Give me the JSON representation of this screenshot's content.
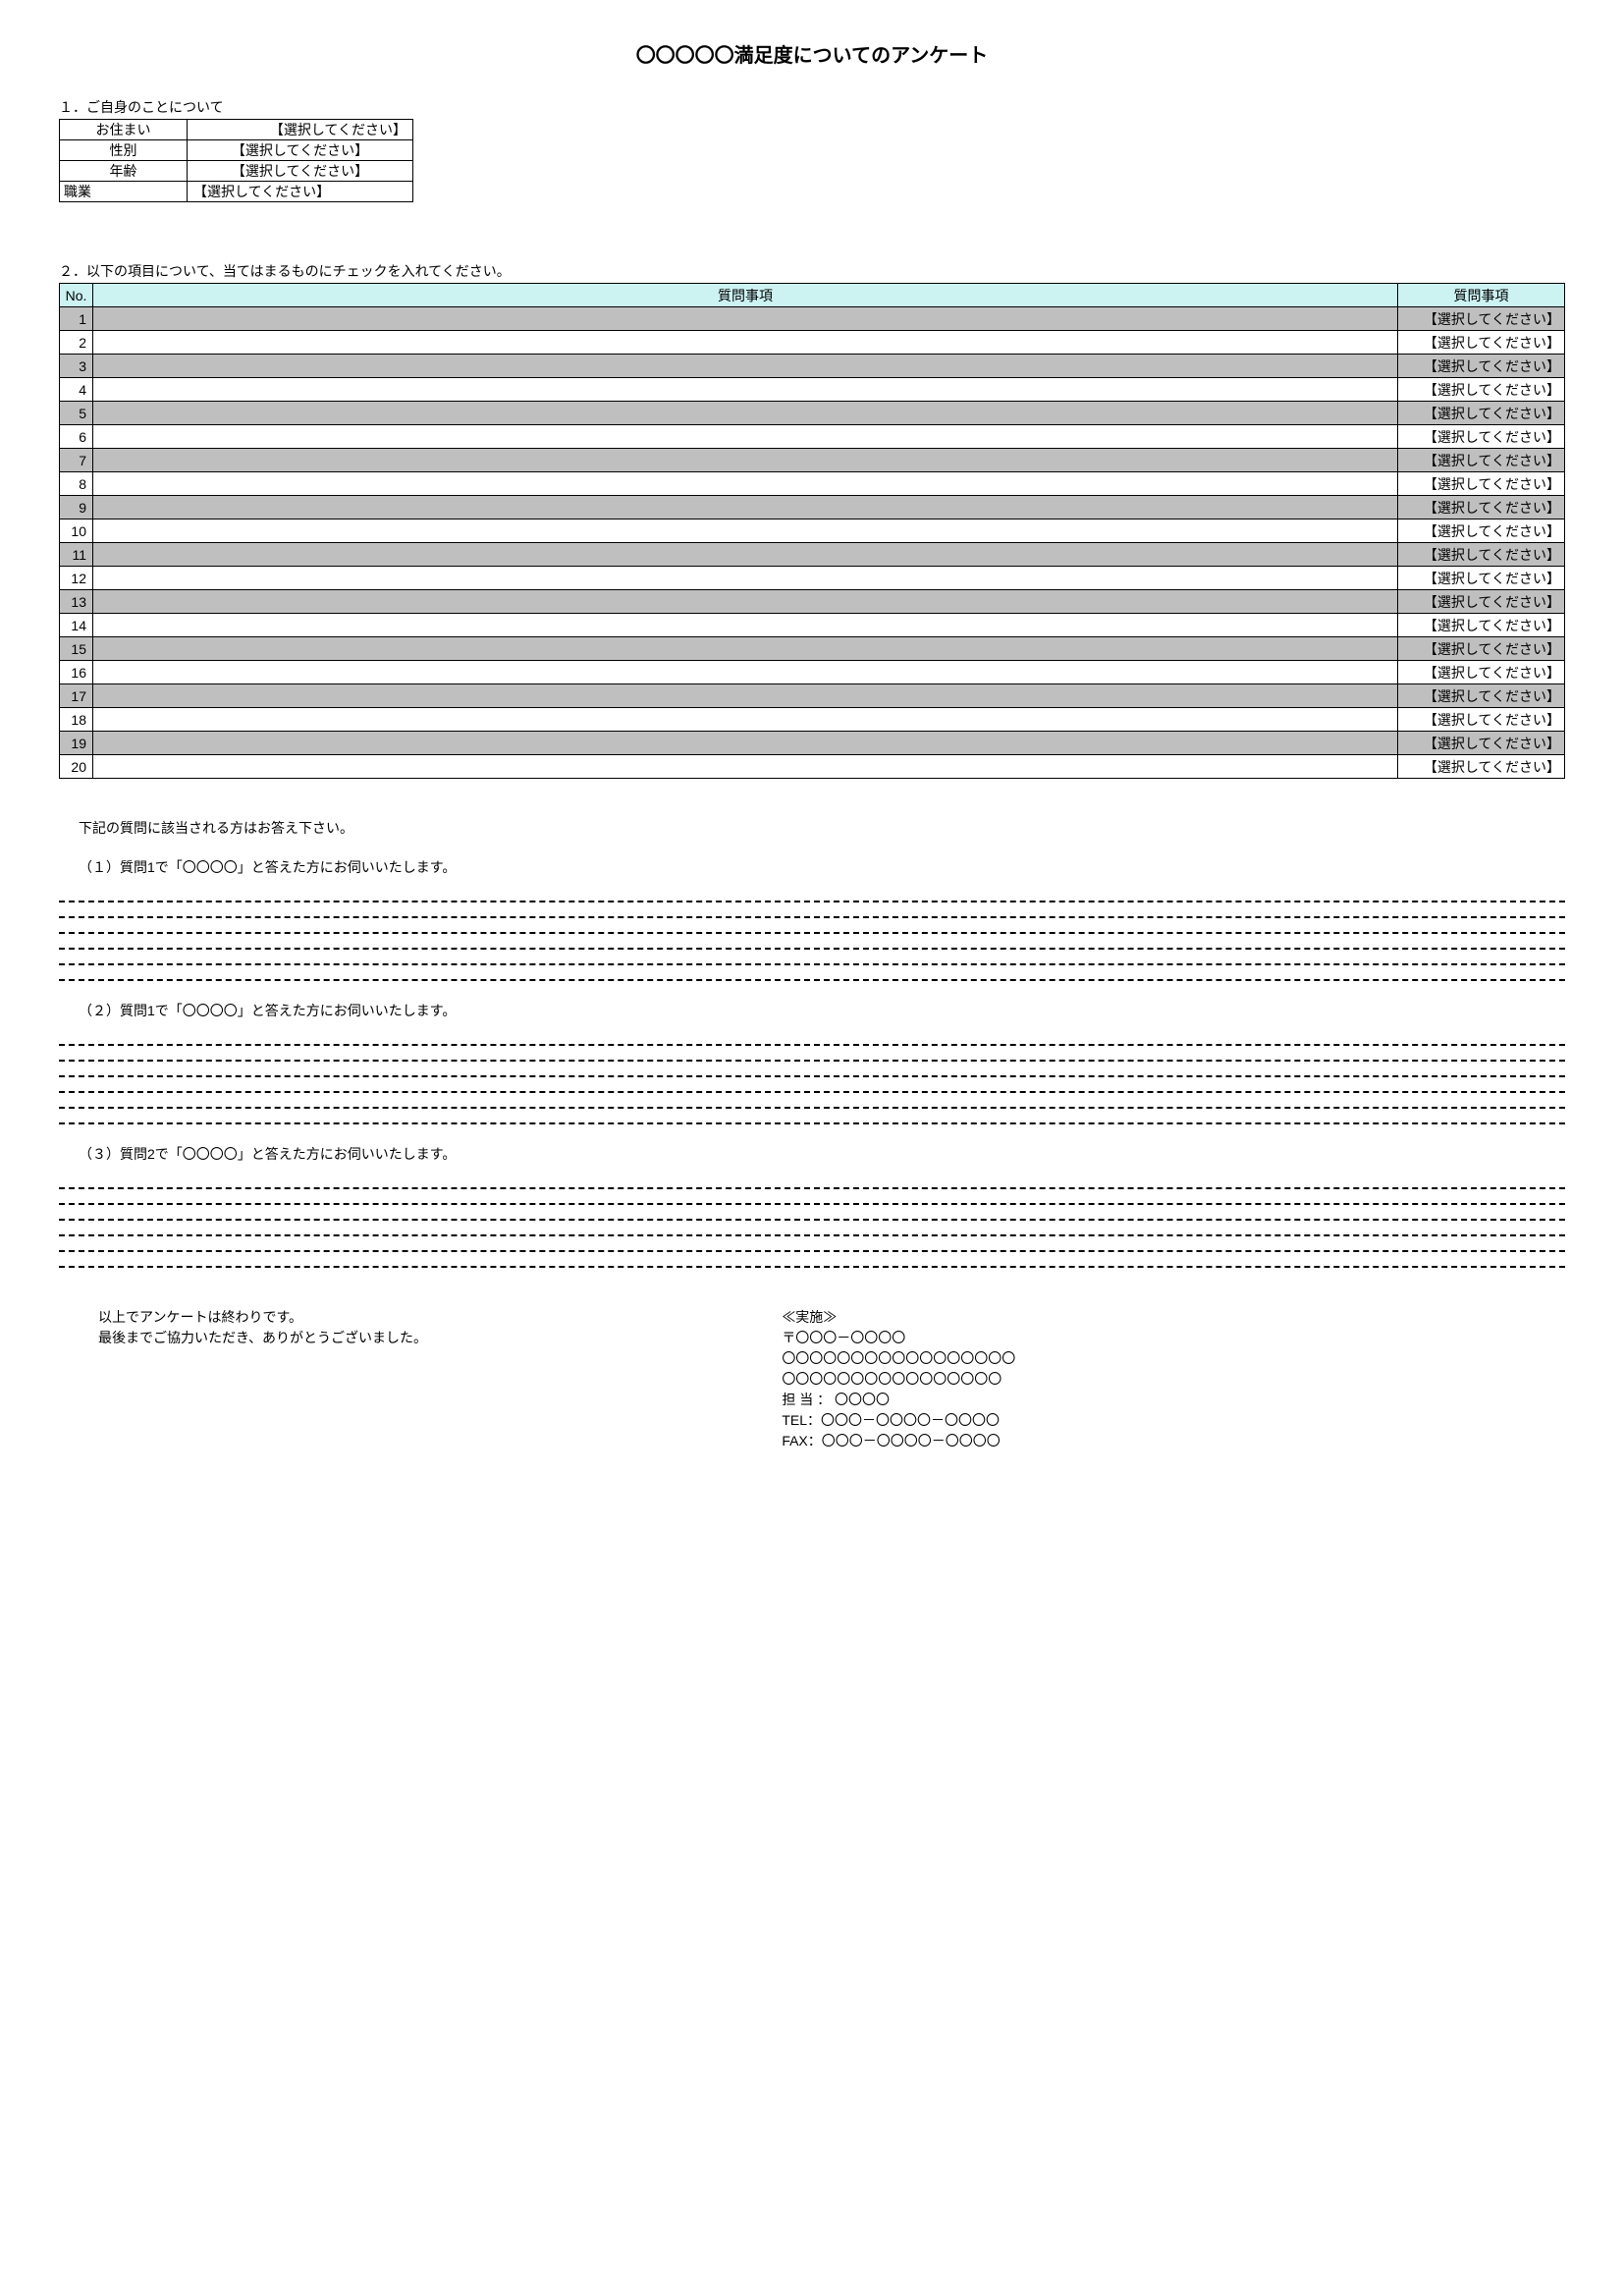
{
  "title": "〇〇〇〇〇満足度についてのアンケート",
  "section1_label": "１．ご自身のことについて",
  "personal": {
    "rows": [
      {
        "label": "お住まい",
        "value": "【選択してください】",
        "align": "right"
      },
      {
        "label": "性別",
        "value": "【選択してください】",
        "align": "center"
      },
      {
        "label": "年齢",
        "value": "【選択してください】",
        "align": "center"
      }
    ],
    "job_label": "職業",
    "job_value": "【選択してください】"
  },
  "section2_label": "２．以下の項目について、当てはまるものにチェックを入れてください。",
  "question_table": {
    "header_color": "#ccf2f2",
    "odd_row_color": "#bfbfbf",
    "even_row_color": "#ffffff",
    "columns": {
      "no": "No.",
      "question": "質問事項",
      "answer": "質問事項"
    },
    "row_count": 20,
    "answer_placeholder": "【選択してください】"
  },
  "follow": {
    "intro": "下記の質問に該当される方はお答え下さい。",
    "q1": "（１）質問1で「〇〇〇〇」と答えた方にお伺いいたします。",
    "q2": "（２）質問1で「〇〇〇〇」と答えた方にお伺いいたします。",
    "q3": "（３）質問2で「〇〇〇〇」と答えた方にお伺いいたします。",
    "dash_lines": 6
  },
  "footer": {
    "left_line1": "以上でアンケートは終わりです。",
    "left_line2": "最後までご協力いただき、ありがとうございました。",
    "right_lines": [
      "≪実施≫",
      "〒〇〇〇－〇〇〇〇",
      "〇〇〇〇〇〇〇〇〇〇〇〇〇〇〇〇〇",
      "〇〇〇〇〇〇〇〇〇〇〇〇〇〇〇〇",
      "担 当 ： 〇〇〇〇",
      "TEL：〇〇〇－〇〇〇〇－〇〇〇〇",
      "FAX：〇〇〇－〇〇〇〇－〇〇〇〇"
    ]
  }
}
